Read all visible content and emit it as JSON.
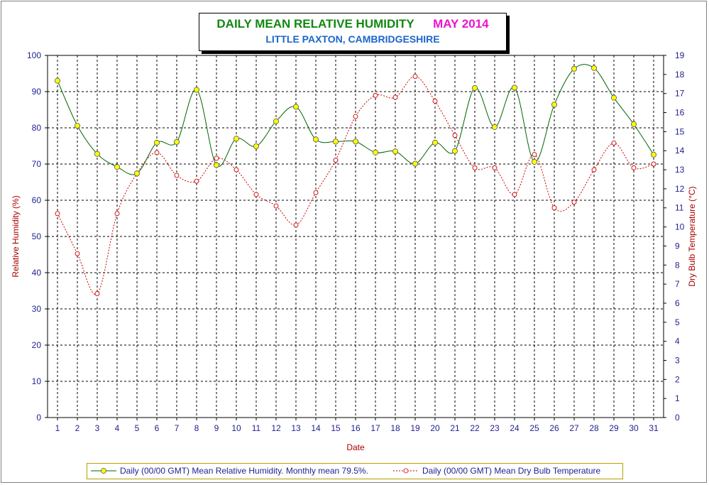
{
  "title": "DAILY MEAN RELATIVE HUMIDITY",
  "title_month": "MAY 2014",
  "subtitle": "LITTLE PAXTON, CAMBRIDGESHIRE",
  "colors": {
    "humidity_line": "#006400",
    "humidity_marker": "#ffff00",
    "temperature_line": "#cc0000",
    "axis_text": "#1f1f8f",
    "axis_title": "#aa0000"
  },
  "chart_data": {
    "type": "line",
    "title": "DAILY MEAN RELATIVE HUMIDITY",
    "subtitle": "LITTLE PAXTON, CAMBRIDGESHIRE",
    "xlabel": "Date",
    "ylabel": "Relative Humidity (%)",
    "y2label": "Dry Bulb Temperature (°C)",
    "x": [
      1,
      2,
      3,
      4,
      5,
      6,
      7,
      8,
      9,
      10,
      11,
      12,
      13,
      14,
      15,
      16,
      17,
      18,
      19,
      20,
      21,
      22,
      23,
      24,
      25,
      26,
      27,
      28,
      29,
      30,
      31
    ],
    "ylim": [
      0,
      100
    ],
    "y2lim": [
      0,
      19
    ],
    "yticks": [
      0,
      10,
      20,
      30,
      40,
      50,
      60,
      70,
      80,
      90,
      100
    ],
    "y2ticks": [
      0,
      1,
      2,
      3,
      4,
      5,
      6,
      7,
      8,
      9,
      10,
      11,
      12,
      13,
      14,
      15,
      16,
      17,
      18,
      19
    ],
    "grid": true,
    "legend_position": "bottom",
    "series": [
      {
        "name": "Daily (00/00 GMT) Mean Relative Humidity. Monthly mean 79.5%.",
        "axis": "left",
        "values": [
          93.0,
          80.6,
          72.8,
          69.2,
          67.4,
          75.9,
          76.1,
          90.5,
          69.7,
          77.0,
          74.9,
          81.8,
          85.8,
          76.8,
          76.2,
          76.2,
          73.2,
          73.5,
          70.1,
          75.9,
          73.6,
          91.0,
          80.2,
          91.1,
          70.6,
          86.4,
          96.3,
          96.5,
          88.3,
          81.0,
          72.6
        ]
      },
      {
        "name": "Daily (00/00 GMT) Mean Dry Bulb Temperature",
        "axis": "right",
        "values": [
          10.7,
          8.6,
          6.5,
          10.7,
          12.8,
          13.9,
          12.7,
          12.4,
          13.6,
          13.0,
          11.7,
          11.1,
          10.1,
          11.8,
          13.5,
          15.8,
          16.9,
          16.8,
          17.9,
          16.6,
          14.8,
          13.1,
          13.1,
          11.7,
          13.8,
          11.0,
          11.3,
          13.0,
          14.4,
          13.1,
          13.3
        ]
      }
    ]
  }
}
